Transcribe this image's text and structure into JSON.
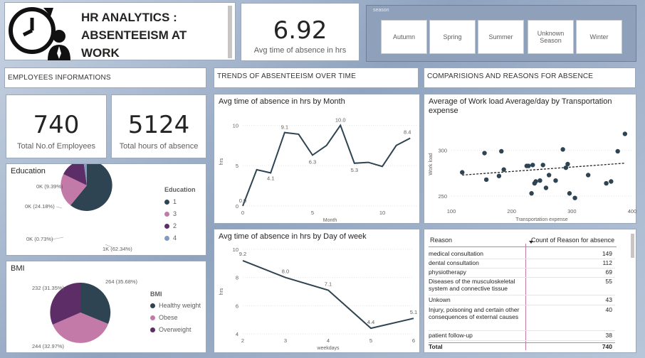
{
  "title": "HR ANALYTICS : ABSENTEEISM AT WORK",
  "kpis": {
    "avg_time": {
      "value": "6.92",
      "label": "Avg time of absence in hrs"
    },
    "employees": {
      "value": "740",
      "label": "Total No.of Employees"
    },
    "hours": {
      "value": "5124",
      "label": "Total hours of absence"
    }
  },
  "season": {
    "title": "season",
    "options": [
      "Autumn",
      "Spring",
      "Summer",
      "Unknown Season",
      "Winter"
    ]
  },
  "sections": {
    "employees": "EMPLOYEES INFORMATIONS",
    "trends": "TRENDS OF ABSENTEEISM OVER TIME",
    "comparisons": "COMPARISIONS AND REASONS FOR ABSENCE"
  },
  "education": {
    "title": "Education",
    "legend_title": "Education",
    "legend": [
      "1",
      "3",
      "2",
      "4"
    ],
    "labels": [
      "1K (62.34%)",
      "0K (24.18%)",
      "0K (9.39%)",
      "0K (0.73%)"
    ],
    "colors": [
      "#2e4453",
      "#c47aa8",
      "#5d2d67",
      "#7f9cbf"
    ]
  },
  "bmi": {
    "title": "BMI",
    "legend_title": "BMI",
    "legend": [
      "Healthy weight",
      "Obese",
      "Overweight"
    ],
    "labels": [
      "264 (35.68%)",
      "244 (32.97%)",
      "232 (31.35%)"
    ],
    "colors": [
      "#2e4453",
      "#c47aa8",
      "#5d2d67"
    ]
  },
  "reasons_table": {
    "col1": "Reason",
    "col2": "Count of Reason for absence",
    "rows": [
      {
        "reason": "medical consultation",
        "count": "149"
      },
      {
        "reason": "dental consultation",
        "count": "112"
      },
      {
        "reason": "physiotherapy",
        "count": "69"
      },
      {
        "reason": "Diseases of the musculoskeletal system and connective tissue",
        "count": "55"
      },
      {
        "reason": "Unkown",
        "count": "43"
      },
      {
        "reason": "Injury, poisoning and certain other consequences of external causes",
        "count": "40"
      },
      {
        "reason": "patient follow-up",
        "count": "38"
      }
    ],
    "total_label": "Total",
    "total_value": "740"
  },
  "chart_data": [
    {
      "type": "line",
      "title": "Avg time of absence in hrs by Month",
      "xlabel": "Month",
      "ylabel": "hrs",
      "x": [
        0,
        1,
        2,
        3,
        4,
        5,
        6,
        7,
        8,
        9,
        10,
        11,
        12
      ],
      "values": [
        0.0,
        4.5,
        4.1,
        9.1,
        8.9,
        6.3,
        7.5,
        10.0,
        5.3,
        5.4,
        4.9,
        7.5,
        8.4
      ],
      "data_labels": {
        "0": "0.0",
        "2": "4.1",
        "3": "9.1",
        "5": "6.3",
        "7": "10.0",
        "8": "5.3",
        "12": "8.4"
      },
      "xticks": [
        0,
        5,
        10
      ],
      "yticks": [
        0,
        5,
        10
      ],
      "xlim": [
        0,
        12.5
      ],
      "ylim": [
        0,
        11
      ]
    },
    {
      "type": "line",
      "title": "Avg time of absence in hrs by Day of week",
      "xlabel": "weekdays",
      "ylabel": "hrs",
      "x": [
        2,
        3,
        4,
        5,
        6
      ],
      "values": [
        9.2,
        8.0,
        7.1,
        4.4,
        5.1
      ],
      "data_labels": [
        "9.2",
        "8.0",
        "7.1",
        "4.4",
        "5.1"
      ],
      "xticks": [
        2,
        3,
        4,
        5,
        6
      ],
      "yticks": [
        4,
        6,
        8,
        10
      ],
      "xlim": [
        2,
        6
      ],
      "ylim": [
        4,
        10
      ]
    },
    {
      "type": "scatter",
      "title": "Average of Work load Average/day by Transportation expense",
      "xlabel": "Transportation expense",
      "ylabel": "Work load",
      "xticks": [
        100,
        200,
        300,
        400
      ],
      "yticks": [
        250,
        300
      ],
      "xlim": [
        100,
        400
      ],
      "ylim": [
        240,
        330
      ],
      "points": [
        [
          118,
          276
        ],
        [
          155,
          297
        ],
        [
          158,
          268
        ],
        [
          179,
          272
        ],
        [
          183,
          299
        ],
        [
          187,
          279
        ],
        [
          225,
          283
        ],
        [
          228,
          283
        ],
        [
          233,
          253
        ],
        [
          235,
          284
        ],
        [
          238,
          264
        ],
        [
          240,
          266
        ],
        [
          247,
          267
        ],
        [
          252,
          284
        ],
        [
          257,
          259
        ],
        [
          262,
          273
        ],
        [
          273,
          267
        ],
        [
          285,
          301
        ],
        [
          290,
          281
        ],
        [
          293,
          285
        ],
        [
          296,
          253
        ],
        [
          305,
          248
        ],
        [
          327,
          273
        ],
        [
          357,
          264
        ],
        [
          365,
          266
        ],
        [
          376,
          299
        ],
        [
          388,
          318
        ]
      ],
      "trendline": [
        [
          118,
          273
        ],
        [
          388,
          286
        ]
      ]
    }
  ]
}
